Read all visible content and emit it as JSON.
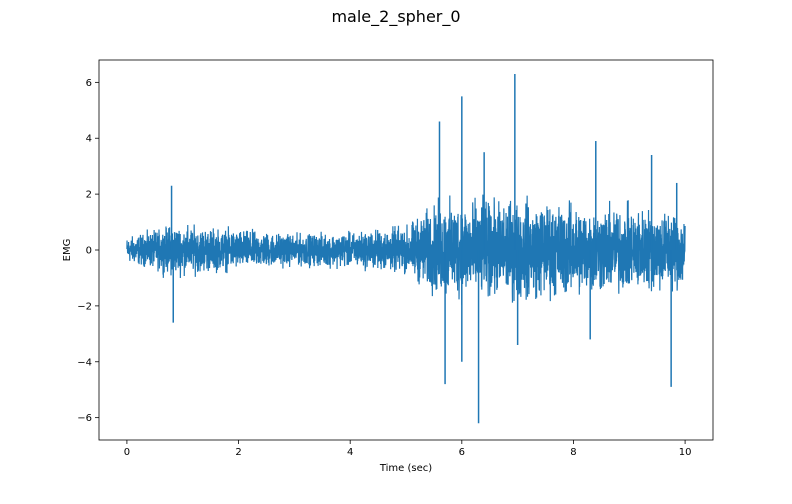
{
  "chart_data": {
    "type": "line",
    "title": "male_2_spher_0",
    "xlabel": "Time (sec)",
    "ylabel": "EMG",
    "xlim": [
      -0.5,
      10.5
    ],
    "ylim": [
      -6.8,
      6.8
    ],
    "xticks": [
      0,
      2,
      4,
      6,
      8,
      10
    ],
    "xtick_labels": [
      "0",
      "2",
      "4",
      "6",
      "8",
      "10"
    ],
    "yticks": [
      -6,
      -4,
      -2,
      0,
      2,
      4,
      6
    ],
    "ytick_labels": [
      "−6",
      "−4",
      "−2",
      "0",
      "2",
      "4",
      "6"
    ],
    "grid": false,
    "series_color": "#1f77b4",
    "envelope": {
      "time": [
        0,
        0.5,
        0.8,
        1.5,
        3.0,
        4.0,
        5.0,
        5.4,
        5.6,
        6.0,
        6.5,
        7.0,
        8.0,
        9.0,
        10.0
      ],
      "typical_amplitude": [
        0.8,
        1.2,
        1.6,
        1.4,
        1.0,
        1.1,
        1.5,
        2.6,
        3.0,
        3.2,
        3.0,
        3.2,
        2.9,
        2.7,
        2.5
      ]
    },
    "peaks": [
      {
        "x": 0.8,
        "y": 2.3
      },
      {
        "x": 0.83,
        "y": -2.6
      },
      {
        "x": 5.6,
        "y": 4.6
      },
      {
        "x": 5.7,
        "y": -4.8
      },
      {
        "x": 6.0,
        "y": 5.5
      },
      {
        "x": 6.0,
        "y": -4.0
      },
      {
        "x": 6.3,
        "y": -6.2
      },
      {
        "x": 6.4,
        "y": 3.5
      },
      {
        "x": 6.95,
        "y": 6.3
      },
      {
        "x": 7.0,
        "y": -3.4
      },
      {
        "x": 8.4,
        "y": 3.9
      },
      {
        "x": 8.3,
        "y": -3.2
      },
      {
        "x": 9.4,
        "y": 3.4
      },
      {
        "x": 9.75,
        "y": -4.9
      },
      {
        "x": 9.85,
        "y": 2.4
      }
    ]
  }
}
